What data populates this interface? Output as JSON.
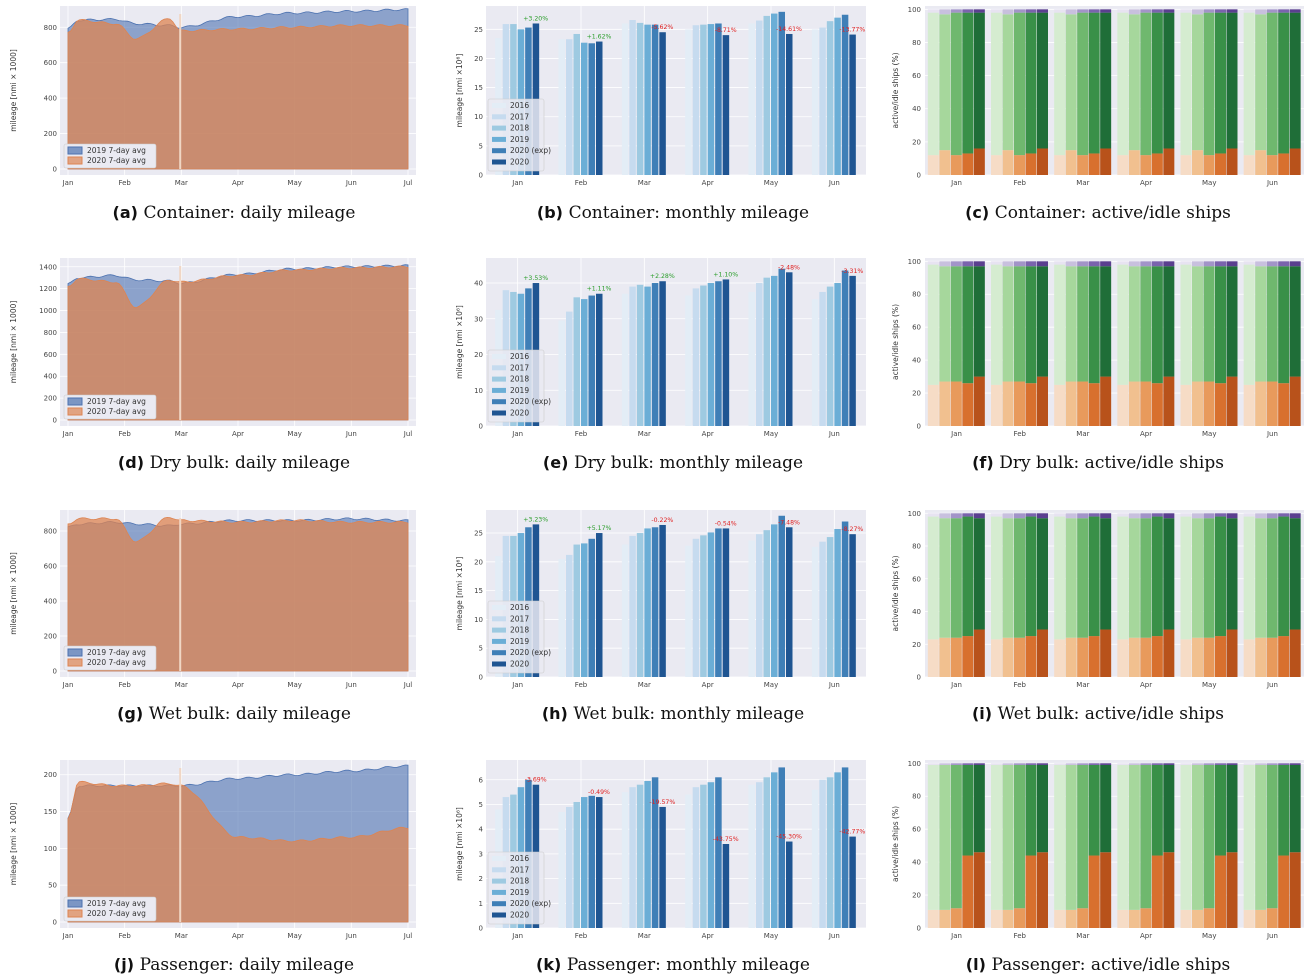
{
  "months_daily": [
    "Jan",
    "Feb",
    "Mar",
    "Apr",
    "May",
    "Jun",
    "Jul"
  ],
  "months_bar": [
    "Jan",
    "Feb",
    "Mar",
    "Apr",
    "May",
    "Jun"
  ],
  "bar_legend": [
    "2016",
    "2017",
    "2018",
    "2019",
    "2020 (exp)",
    "2020"
  ],
  "area_legend": [
    "2019 7-day avg",
    "2020 7-day avg"
  ],
  "ylabel_daily": "mileage [nmi × 1000]",
  "ylabel_bar": "mileage [nmi ×10⁶]",
  "ylabel_idle": "active/idle ships (%)",
  "colors": {
    "area2019": "#4c72b0",
    "area2020": "#dd8452",
    "bars": [
      "#e3edf6",
      "#c6dbef",
      "#9ecae1",
      "#6baed6",
      "#3f7fb7",
      "#1f5592"
    ],
    "pos": "#2a9d2a",
    "neg": "#e02020",
    "oranges": [
      "#f6dcc6",
      "#f1c08f",
      "#e89a5c",
      "#d8702e",
      "#b8521b"
    ],
    "greens": [
      "#d5ecd0",
      "#a6d79c",
      "#6fb86e",
      "#399048",
      "#1f6e38"
    ],
    "purples": [
      "#e7e3f1",
      "#c8c0de",
      "#a294c8",
      "#7a63ad",
      "#5a3f8f"
    ]
  },
  "captions": [
    {
      "letter": "(a)",
      "text": "Container: daily mileage"
    },
    {
      "letter": "(b)",
      "text": "Container: monthly mileage"
    },
    {
      "letter": "(c)",
      "text": "Container: active/idle ships"
    },
    {
      "letter": "(d)",
      "text": "Dry bulk: daily mileage"
    },
    {
      "letter": "(e)",
      "text": "Dry bulk: monthly mileage"
    },
    {
      "letter": "(f)",
      "text": "Dry bulk: active/idle ships"
    },
    {
      "letter": "(g)",
      "text": "Wet bulk: daily mileage"
    },
    {
      "letter": "(h)",
      "text": "Wet bulk: monthly mileage"
    },
    {
      "letter": "(i)",
      "text": "Wet bulk: active/idle ships"
    },
    {
      "letter": "(j)",
      "text": "Passenger: daily mileage"
    },
    {
      "letter": "(k)",
      "text": "Passenger: monthly mileage"
    },
    {
      "letter": "(l)",
      "text": "Passenger: active/idle ships"
    }
  ],
  "chart_data": [
    {
      "type": "area",
      "panel": "a",
      "ylim": [
        0,
        920
      ],
      "yticks": [
        0,
        200,
        400,
        600,
        800
      ],
      "series": [
        {
          "name": "2019 7-day avg",
          "x": [
            "Jan",
            "Jan",
            "Feb",
            "Feb",
            "Mar",
            "Mar",
            "Apr",
            "May",
            "Jun",
            "Jul"
          ],
          "values": [
            790,
            840,
            845,
            820,
            810,
            800,
            860,
            880,
            890,
            900
          ]
        },
        {
          "name": "2020 7-day avg",
          "values": [
            770,
            840,
            820,
            735,
            850,
            780,
            790,
            800,
            810,
            810
          ]
        }
      ]
    },
    {
      "type": "bar",
      "panel": "b",
      "ylim": [
        0,
        29
      ],
      "yticks": [
        0,
        5,
        10,
        15,
        20,
        25
      ],
      "series": [
        [
          23.5,
          23.3,
          26.0,
          25.0,
          26.0,
          25.0
        ],
        [
          25.9,
          23.3,
          26.6,
          25.7,
          26.5,
          25.3
        ],
        [
          25.9,
          24.2,
          26.1,
          25.8,
          27.3,
          26.4
        ],
        [
          25.0,
          22.7,
          25.8,
          25.9,
          27.7,
          27.0
        ],
        [
          25.3,
          22.6,
          25.8,
          26.0,
          28.0,
          27.5
        ],
        [
          26.0,
          22.9,
          24.5,
          24.0,
          24.2,
          24.1
        ]
      ],
      "annotations": [
        "+3.20%",
        "+1.62%",
        "-5.62%",
        "-8.71%",
        "-14.61%",
        "-13.77%"
      ]
    },
    {
      "type": "stacked_bar",
      "panel": "c",
      "orange": [
        12,
        15,
        12,
        13,
        16
      ],
      "purple": [
        2,
        3,
        2,
        2,
        2
      ]
    },
    {
      "type": "area",
      "panel": "d",
      "ylim": [
        0,
        1480
      ],
      "yticks": [
        0,
        200,
        400,
        600,
        800,
        1000,
        1200,
        1400
      ],
      "series": [
        {
          "name": "2019 7-day avg",
          "values": [
            1240,
            1300,
            1320,
            1280,
            1270,
            1250,
            1330,
            1380,
            1400,
            1410
          ]
        },
        {
          "name": "2020 7-day avg",
          "values": [
            1220,
            1290,
            1260,
            1030,
            1280,
            1260,
            1320,
            1370,
            1390,
            1400
          ]
        }
      ]
    },
    {
      "type": "bar",
      "panel": "e",
      "ylim": [
        0,
        47
      ],
      "yticks": [
        0,
        10,
        20,
        30,
        40
      ],
      "series": [
        [
          32.5,
          29.5,
          37.0,
          36.5,
          37.5,
          35.5
        ],
        [
          38.0,
          32.0,
          39.0,
          38.5,
          40.0,
          37.5
        ],
        [
          37.5,
          36.0,
          39.5,
          39.3,
          41.5,
          39.0
        ],
        [
          37.0,
          35.5,
          39.0,
          40.0,
          42.0,
          40.0
        ],
        [
          38.5,
          36.5,
          40.0,
          40.5,
          44.0,
          43.5
        ],
        [
          40.0,
          37.0,
          40.5,
          41.0,
          43.0,
          42.0
        ]
      ],
      "annotations": [
        "+3.53%",
        "+1.11%",
        "+2.28%",
        "+1.10%",
        "-2.48%",
        "-3.31%"
      ]
    },
    {
      "type": "stacked_bar",
      "panel": "f",
      "orange": [
        25,
        27,
        27,
        26,
        30
      ],
      "purple": [
        2,
        3,
        3,
        3,
        3
      ]
    },
    {
      "type": "area",
      "panel": "g",
      "ylim": [
        0,
        920
      ],
      "yticks": [
        0,
        200,
        400,
        600,
        800
      ],
      "series": [
        {
          "name": "2019 7-day avg",
          "values": [
            820,
            840,
            850,
            840,
            830,
            840,
            860,
            860,
            870,
            860
          ]
        },
        {
          "name": "2020 7-day avg",
          "values": [
            840,
            870,
            870,
            740,
            880,
            860,
            850,
            860,
            850,
            850
          ]
        }
      ]
    },
    {
      "type": "bar",
      "panel": "h",
      "ylim": [
        0,
        29
      ],
      "yticks": [
        0,
        5,
        10,
        15,
        20,
        25
      ],
      "series": [
        [
          21.0,
          20.5,
          23.0,
          22.8,
          23.7,
          22.6
        ],
        [
          24.5,
          21.2,
          24.5,
          24.0,
          24.8,
          23.5
        ],
        [
          24.5,
          23.0,
          25.0,
          24.6,
          25.5,
          24.3
        ],
        [
          25.0,
          23.2,
          25.8,
          25.1,
          26.5,
          25.7
        ],
        [
          26.0,
          24.0,
          26.0,
          25.8,
          28.0,
          27.0
        ],
        [
          26.5,
          25.0,
          26.4,
          25.8,
          26.0,
          24.8
        ]
      ],
      "annotations": [
        "+3.23%",
        "+5.17%",
        "-0.22%",
        "-0.54%",
        "-7.48%",
        "-8.27%"
      ]
    },
    {
      "type": "stacked_bar",
      "panel": "i",
      "orange": [
        23,
        24,
        24,
        25,
        29
      ],
      "purple": [
        2,
        3,
        3,
        2,
        3
      ]
    },
    {
      "type": "area",
      "panel": "j",
      "ylim": [
        0,
        220
      ],
      "yticks": [
        0,
        50,
        100,
        150,
        200
      ],
      "series": [
        {
          "name": "2019 7-day avg",
          "values": [
            140,
            185,
            185,
            185,
            185,
            185,
            195,
            200,
            205,
            212
          ]
        },
        {
          "name": "2020 7-day avg",
          "values": [
            140,
            190,
            185,
            185,
            188,
            185,
            115,
            110,
            115,
            128
          ]
        }
      ]
    },
    {
      "type": "bar",
      "panel": "k",
      "ylim": [
        0,
        6.8
      ],
      "yticks": [
        0,
        1,
        2,
        3,
        4,
        5,
        6
      ],
      "series": [
        [
          4.8,
          4.7,
          5.5,
          5.4,
          5.8,
          5.6
        ],
        [
          5.3,
          4.9,
          5.7,
          5.7,
          5.9,
          6.0
        ],
        [
          5.4,
          5.1,
          5.8,
          5.8,
          6.1,
          6.1
        ],
        [
          5.7,
          5.3,
          5.95,
          5.9,
          6.3,
          6.3
        ],
        [
          6.0,
          5.35,
          6.1,
          6.1,
          6.5,
          6.5
        ],
        [
          5.8,
          5.3,
          4.9,
          3.4,
          3.5,
          3.7
        ]
      ],
      "annotations": [
        "-3.69%",
        "-0.49%",
        "-19.57%",
        "-43.75%",
        "-45.30%",
        "-42.77%"
      ]
    },
    {
      "type": "stacked_bar",
      "panel": "l",
      "orange": [
        11,
        11,
        12,
        44,
        46
      ],
      "purple": [
        1,
        1,
        1,
        1,
        1
      ]
    }
  ]
}
